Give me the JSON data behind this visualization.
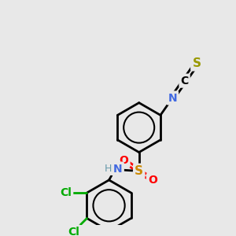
{
  "bg_color": "#e8e8e8",
  "atom_colors": {
    "S_iso": "#999900",
    "S_sulfonyl": "#cc8800",
    "C": "#000000",
    "N": "#0000cc",
    "N_blue": "#4169e1",
    "O": "#ff0000",
    "Cl": "#00aa00",
    "H": "#6699aa"
  },
  "bond_color": "#000000",
  "bond_width": 2.0
}
